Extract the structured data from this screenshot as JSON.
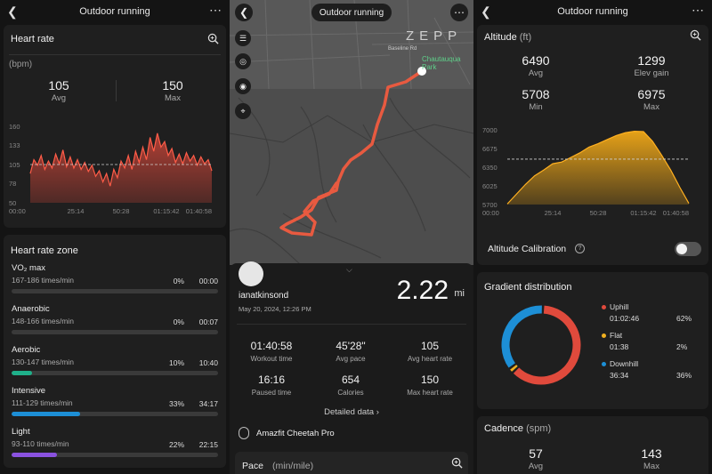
{
  "left_panel": {
    "title": "Outdoor running",
    "heart_rate": {
      "title": "Heart rate",
      "unit": "(bpm)",
      "avg_value": "105",
      "avg_label": "Avg",
      "max_value": "150",
      "max_label": "Max"
    },
    "zones": {
      "title": "Heart rate zone",
      "items": [
        {
          "name": "VO₂ max",
          "range": "167-186 times/min",
          "pct": "0%",
          "time": "00:00",
          "fraction": 0,
          "color": "#7a7a7a"
        },
        {
          "name": "Anaerobic",
          "range": "148-166 times/min",
          "pct": "0%",
          "time": "00:07",
          "fraction": 0,
          "color": "#7a7a7a"
        },
        {
          "name": "Aerobic",
          "range": "130-147 times/min",
          "pct": "10%",
          "time": "10:40",
          "fraction": 0.1,
          "color": "#1fb08a"
        },
        {
          "name": "Intensive",
          "range": "111-129 times/min",
          "pct": "33%",
          "time": "34:17",
          "fraction": 0.33,
          "color": "#1d8fd6"
        },
        {
          "name": "Light",
          "range": "93-110 times/min",
          "pct": "22%",
          "time": "22:15",
          "fraction": 0.22,
          "color": "#8a52e0"
        }
      ]
    }
  },
  "middle_panel": {
    "title": "Outdoor running",
    "map": {
      "brand": "ZEPP",
      "label_park": "Chautauqua Park",
      "label_road": "Baseline Rd"
    },
    "user": "ianatkinsond",
    "date": "May 20, 2024, 12:26 PM",
    "distance": "2.22",
    "distance_unit": "mi",
    "stats": [
      {
        "value": "01:40:58",
        "label": "Workout time"
      },
      {
        "value": "45'28\"",
        "label": "Avg pace"
      },
      {
        "value": "105",
        "label": "Avg heart rate"
      },
      {
        "value": "16:16",
        "label": "Paused time"
      },
      {
        "value": "654",
        "label": "Calories"
      },
      {
        "value": "150",
        "label": "Max heart rate"
      }
    ],
    "detailed_link": "Detailed data",
    "device": "Amazfit Cheetah Pro",
    "pace_title": "Pace",
    "pace_unit": "(min/mile)"
  },
  "right_panel": {
    "title": "Outdoor running",
    "altitude": {
      "title": "Altitude",
      "unit": "(ft)",
      "stats": [
        {
          "value": "6490",
          "label": "Avg"
        },
        {
          "value": "1299",
          "label": "Elev gain"
        },
        {
          "value": "5708",
          "label": "Min"
        },
        {
          "value": "6975",
          "label": "Max"
        }
      ],
      "calibration_label": "Altitude Calibration",
      "calibration_on": false
    },
    "gradient": {
      "title": "Gradient distribution",
      "items": [
        {
          "name": "Uphill",
          "time": "01:02:46",
          "pct": "62%",
          "fraction": 0.62,
          "color": "#e04a3c"
        },
        {
          "name": "Flat",
          "time": "01:38",
          "pct": "2%",
          "fraction": 0.02,
          "color": "#f0b020"
        },
        {
          "name": "Downhill",
          "time": "36:34",
          "pct": "36%",
          "fraction": 0.36,
          "color": "#1d8fd6"
        }
      ]
    },
    "cadence": {
      "title": "Cadence",
      "unit": "(spm)",
      "avg_value": "57",
      "avg_label": "Avg",
      "max_value": "143",
      "max_label": "Max"
    }
  },
  "chart_data": [
    {
      "type": "area",
      "title": "Heart rate",
      "ylabel": "(bpm)",
      "yticks": [
        160,
        133,
        105,
        78,
        50
      ],
      "xticks": [
        "00:00",
        "25:14",
        "50:28",
        "01:15:42",
        "01:40:58"
      ],
      "ylim": [
        50,
        160
      ],
      "avg_line": 105,
      "color": "#e04a3c",
      "x": [
        0,
        2,
        4,
        6,
        8,
        10,
        12,
        14,
        16,
        18,
        20,
        22,
        24,
        26,
        28,
        30,
        32,
        34,
        36,
        38,
        40,
        42,
        44,
        46,
        48,
        50,
        52,
        54,
        56,
        58,
        60,
        62,
        64,
        66,
        68,
        70,
        72,
        74,
        76,
        78,
        80,
        82,
        84,
        86,
        88,
        90,
        92,
        94,
        96,
        98,
        100
      ],
      "values": [
        92,
        112,
        104,
        118,
        98,
        110,
        100,
        120,
        106,
        126,
        102,
        116,
        100,
        112,
        98,
        108,
        95,
        104,
        88,
        96,
        80,
        92,
        74,
        98,
        86,
        110,
        100,
        118,
        98,
        124,
        108,
        130,
        112,
        144,
        124,
        150,
        130,
        138,
        118,
        128,
        108,
        120,
        106,
        122,
        110,
        118,
        104,
        116,
        106,
        112,
        96
      ]
    },
    {
      "type": "area",
      "title": "Altitude",
      "ylabel": "(ft)",
      "yticks": [
        7000,
        6675,
        6350,
        6025,
        5700
      ],
      "xticks": [
        "00:00",
        "25:14",
        "50:28",
        "01:15:42",
        "01:40:58"
      ],
      "ylim": [
        5700,
        7000
      ],
      "avg_line": 6490,
      "color": "#f0a818",
      "x": [
        0,
        5,
        10,
        15,
        20,
        25,
        30,
        35,
        40,
        45,
        50,
        55,
        60,
        65,
        70,
        75,
        80,
        85,
        90,
        95,
        100
      ],
      "values": [
        5710,
        5880,
        6050,
        6200,
        6300,
        6410,
        6440,
        6520,
        6600,
        6700,
        6760,
        6830,
        6900,
        6950,
        6975,
        6970,
        6800,
        6560,
        6300,
        6000,
        5720
      ]
    }
  ]
}
